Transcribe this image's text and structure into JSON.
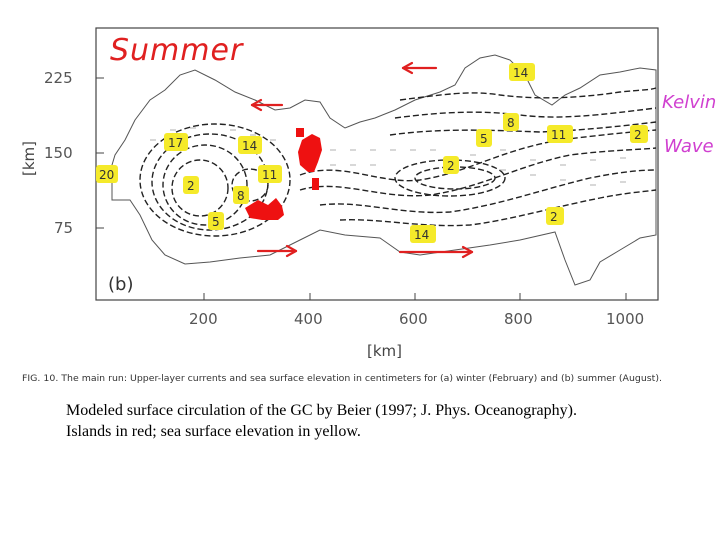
{
  "panel": {
    "handwritten_title": "Summer",
    "panel_label": "(b)",
    "kelvin_label": "Kelvin",
    "wave_label": "Wave",
    "x_axis_label": "[km]",
    "y_axis_label": "[km]",
    "x_ticks": [
      "200",
      "400",
      "600",
      "800",
      "1000"
    ],
    "y_ticks": [
      "225",
      "150",
      "75"
    ],
    "figure_caption": "FIG. 10. The main run: Upper-layer currents and sea surface elevation in centimeters for (a) winter (February) and (b) summer (August)."
  },
  "elevation_labels": [
    "20",
    "17",
    "14",
    "2",
    "8",
    "11",
    "5",
    "14",
    "5",
    "2",
    "8",
    "11",
    "2",
    "2",
    "14"
  ],
  "colors": {
    "island": "#ee1111",
    "elevation_highlight": "#f5ea2a",
    "handwriting": "#e02020",
    "kelvin_text": "#d040d0"
  },
  "caption": {
    "line1": "Modeled surface circulation of the GC by Beier (1997; J. Phys. Oceanography).",
    "line2": "Islands in red; sea surface elevation in yellow."
  }
}
